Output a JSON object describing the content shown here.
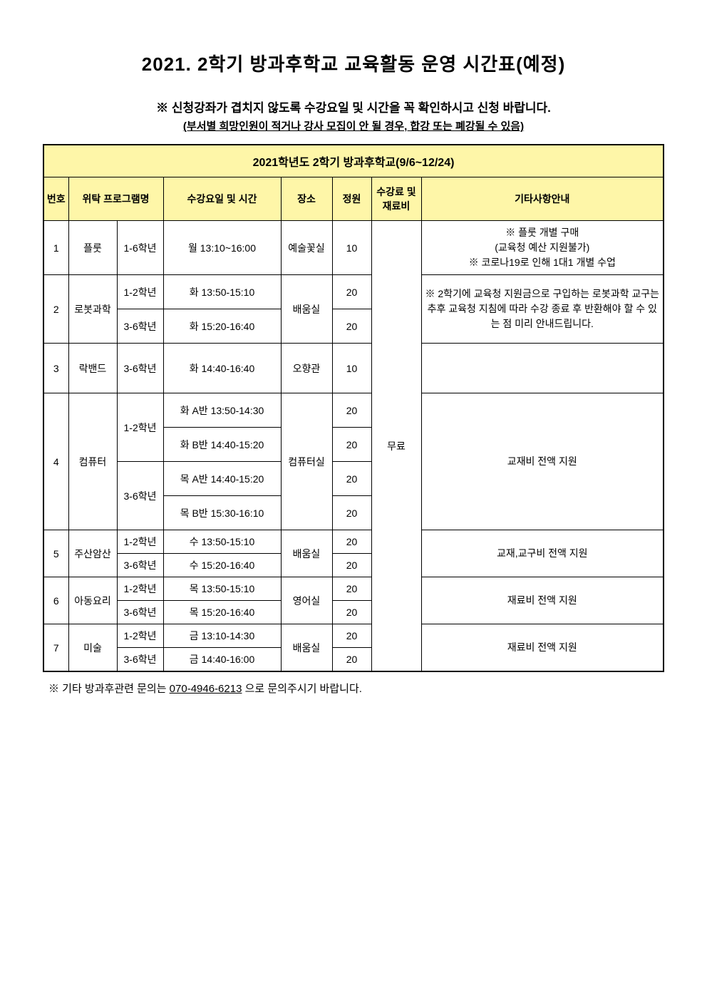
{
  "title": "2021. 2학기 방과후학교 교육활동 운영 시간표(예정)",
  "note_primary": "※ 신청강좌가 겹치지 않도록 수강요일 및 시간을 꼭 확인하시고 신청 바랍니다.",
  "note_secondary_prefix": "(",
  "note_secondary_text": "부서별 희망인원이 적거나 강사 모집이 안 될 경우, 합강 또는 폐강될 수 있음",
  "note_secondary_suffix": ")",
  "period_header": "2021학년도 2학기 방과후학교(9/6~12/24)",
  "columns": {
    "no": "번호",
    "program": "위탁 프로그램명",
    "time": "수강요일 및 시간",
    "place": "장소",
    "capacity": "정원",
    "fee": "수강료 및 재료비",
    "notes": "기타사항안내"
  },
  "fee_value": "무료",
  "rows": [
    {
      "no": "1",
      "program": "플룻",
      "grade": "1-6학년",
      "time": "월 13:10~16:00",
      "place": "예술꽃실",
      "capacity": "10",
      "notes": "※ 플룻 개별 구매\n (교육청 예산 지원불가)\n※ 코로나19로 인해 1대1 개별 수업"
    },
    {
      "no": "2",
      "program": "로봇과학",
      "subrows": [
        {
          "grade": "1-2학년",
          "time": "화 13:50-15:10",
          "capacity": "20"
        },
        {
          "grade": "3-6학년",
          "time": "화 15:20-16:40",
          "capacity": "20"
        }
      ],
      "place": "배움실",
      "notes": "※ 2학기에 교육청 지원금으로 구입하는 로봇과학 교구는 추후 교육청 지침에 따라 수강 종료 후 반환해야 할 수 있는 점 미리 안내드립니다."
    },
    {
      "no": "3",
      "program": "락밴드",
      "grade": "3-6학년",
      "time": "화 14:40-16:40",
      "place": "오향관",
      "capacity": "10",
      "notes": ""
    },
    {
      "no": "4",
      "program": "컴퓨터",
      "subrows": [
        {
          "grade": "1-2학년",
          "time": "화 A반 13:50-14:30",
          "capacity": "20"
        },
        {
          "grade": "",
          "time": "화 B반 14:40-15:20",
          "capacity": "20"
        },
        {
          "grade": "3-6학년",
          "time": "목 A반 14:40-15:20",
          "capacity": "20"
        },
        {
          "grade": "",
          "time": "목 B반 15:30-16:10",
          "capacity": "20"
        }
      ],
      "place": "컴퓨터실",
      "notes": "교재비 전액 지원"
    },
    {
      "no": "5",
      "program": "주산암산",
      "subrows": [
        {
          "grade": "1-2학년",
          "time": "수 13:50-15:10",
          "capacity": "20"
        },
        {
          "grade": "3-6학년",
          "time": "수 15:20-16:40",
          "capacity": "20"
        }
      ],
      "place": "배움실",
      "notes": "교재,교구비 전액 지원"
    },
    {
      "no": "6",
      "program": "아동요리",
      "subrows": [
        {
          "grade": "1-2학년",
          "time": "목 13:50-15:10",
          "capacity": "20"
        },
        {
          "grade": "3-6학년",
          "time": "목 15:20-16:40",
          "capacity": "20"
        }
      ],
      "place": "영어실",
      "notes": "재료비 전액 지원"
    },
    {
      "no": "7",
      "program": "미술",
      "subrows": [
        {
          "grade": "1-2학년",
          "time": "금 13:10-14:30",
          "capacity": "20"
        },
        {
          "grade": "3-6학년",
          "time": "금 14:40-16:00",
          "capacity": "20"
        }
      ],
      "place": "배움실",
      "notes": "재료비 전액 지원"
    }
  ],
  "footer": {
    "prefix": "※ 기타 방과후관련 문의는 ",
    "phone": "070-4946-6213",
    "suffix": " 으로 문의주시기 바랍니다."
  },
  "styling": {
    "page_bg": "#ffffff",
    "header_bg": "#fef6a8",
    "border_color": "#000000",
    "title_fontsize": 26,
    "body_fontsize": 14
  }
}
